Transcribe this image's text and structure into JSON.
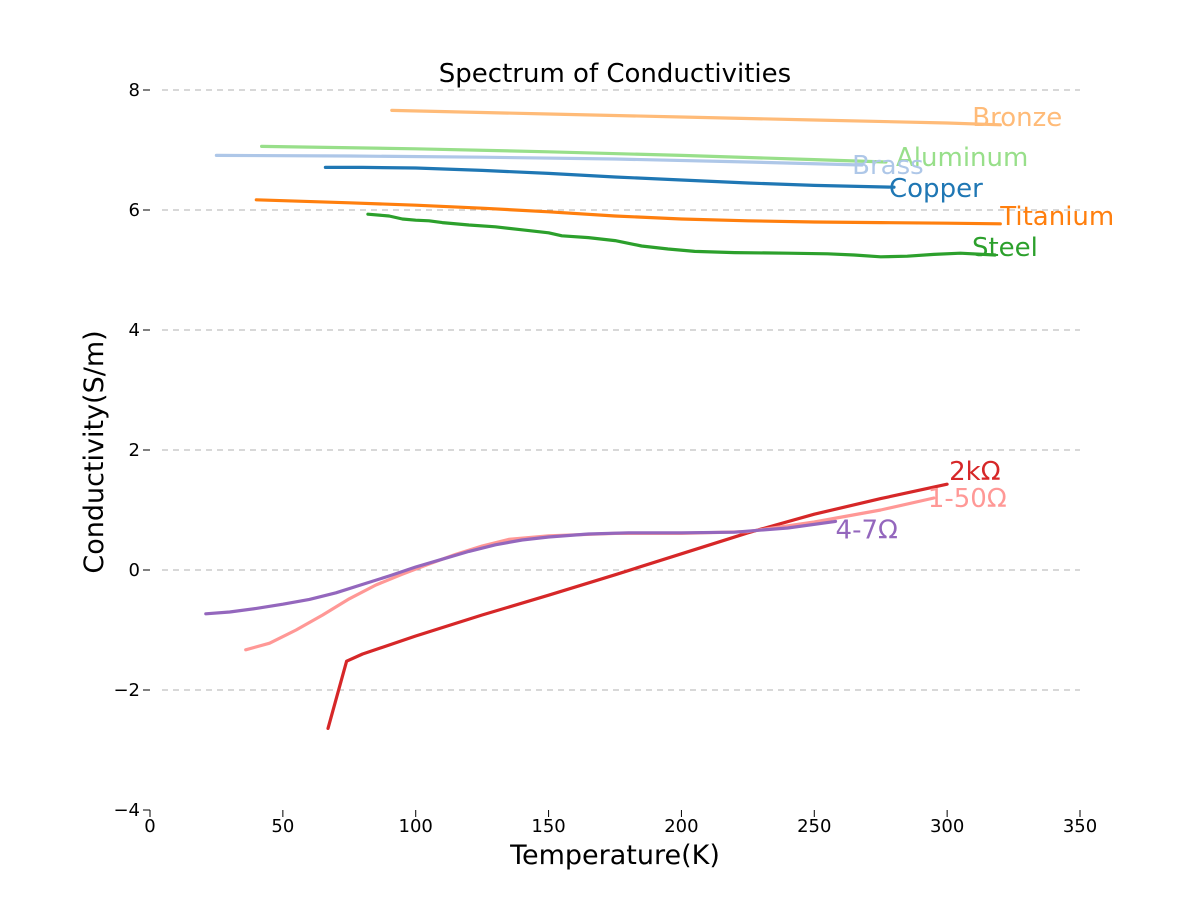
{
  "chart_data": {
    "type": "line",
    "title": "Spectrum of Conductivities",
    "xlabel": "Temperature(K)",
    "ylabel": "Conductivity(S/m)",
    "xlim": [
      0,
      350
    ],
    "ylim": [
      -4,
      8
    ],
    "xticks": [
      0,
      50,
      100,
      150,
      200,
      250,
      300,
      350
    ],
    "yticks": [
      -4,
      -2,
      0,
      2,
      4,
      6,
      8
    ],
    "xtick_labels": [
      "0",
      "50",
      "100",
      "150",
      "200",
      "250",
      "300",
      "350"
    ],
    "ytick_labels": [
      "−4",
      "−2",
      "0",
      "2",
      "4",
      "6",
      "8"
    ],
    "grid": "horizontal dashed",
    "legend": "none (labels at line ends)",
    "series": [
      {
        "name": "Bronze",
        "color": "#ffbb78",
        "x": [
          91,
          150,
          200,
          250,
          300,
          320
        ],
        "y": [
          7.66,
          7.6,
          7.55,
          7.5,
          7.45,
          7.42
        ]
      },
      {
        "name": "Aluminum",
        "color": "#98df8a",
        "x": [
          42,
          100,
          150,
          200,
          250,
          277
        ],
        "y": [
          7.06,
          7.02,
          6.97,
          6.91,
          6.84,
          6.8
        ]
      },
      {
        "name": "Brass",
        "color": "#aec7e8",
        "x": [
          25,
          75,
          125,
          175,
          225,
          268
        ],
        "y": [
          6.91,
          6.9,
          6.88,
          6.85,
          6.8,
          6.75
        ]
      },
      {
        "name": "Copper",
        "color": "#1f77b4",
        "x": [
          66,
          80,
          100,
          125,
          150,
          175,
          200,
          225,
          250,
          280
        ],
        "y": [
          6.71,
          6.71,
          6.7,
          6.66,
          6.61,
          6.55,
          6.5,
          6.45,
          6.41,
          6.38
        ]
      },
      {
        "name": "Titanium",
        "color": "#ff7f0e",
        "x": [
          40,
          75,
          100,
          125,
          150,
          175,
          200,
          225,
          250,
          275,
          300,
          320
        ],
        "y": [
          6.17,
          6.12,
          6.08,
          6.03,
          5.97,
          5.9,
          5.85,
          5.82,
          5.8,
          5.79,
          5.78,
          5.77
        ]
      },
      {
        "name": "Steel",
        "color": "#2ca02c",
        "x": [
          82,
          90,
          95,
          100,
          105,
          110,
          120,
          130,
          140,
          150,
          155,
          165,
          175,
          185,
          195,
          205,
          220,
          240,
          255,
          265,
          275,
          285,
          295,
          305,
          318
        ],
        "y": [
          5.93,
          5.9,
          5.85,
          5.83,
          5.82,
          5.79,
          5.75,
          5.72,
          5.67,
          5.62,
          5.57,
          5.54,
          5.49,
          5.4,
          5.35,
          5.31,
          5.29,
          5.28,
          5.27,
          5.25,
          5.22,
          5.23,
          5.26,
          5.28,
          5.25
        ]
      },
      {
        "name": "2kΩ",
        "color": "#d62728",
        "x": [
          67,
          74,
          80,
          100,
          125,
          150,
          175,
          200,
          225,
          250,
          275,
          300
        ],
        "y": [
          -2.64,
          -1.52,
          -1.4,
          -1.1,
          -0.75,
          -0.42,
          -0.08,
          0.27,
          0.62,
          0.93,
          1.19,
          1.43
        ]
      },
      {
        "name": "1-50Ω",
        "color": "#ff9896",
        "x": [
          36,
          45,
          55,
          65,
          75,
          85,
          95,
          105,
          115,
          125,
          135,
          150,
          175,
          200,
          225,
          250,
          275,
          295
        ],
        "y": [
          -1.33,
          -1.22,
          -1.0,
          -0.75,
          -0.48,
          -0.25,
          -0.07,
          0.1,
          0.26,
          0.4,
          0.51,
          0.57,
          0.61,
          0.61,
          0.64,
          0.8,
          1.0,
          1.2
        ]
      },
      {
        "name": "4-7Ω",
        "color": "#9467bd",
        "x": [
          21,
          30,
          40,
          50,
          60,
          70,
          80,
          90,
          100,
          110,
          120,
          130,
          140,
          150,
          165,
          180,
          200,
          220,
          240,
          258
        ],
        "y": [
          -0.73,
          -0.7,
          -0.64,
          -0.57,
          -0.49,
          -0.38,
          -0.24,
          -0.1,
          0.05,
          0.18,
          0.31,
          0.42,
          0.5,
          0.55,
          0.6,
          0.62,
          0.62,
          0.63,
          0.7,
          0.81
        ]
      }
    ],
    "label_colors": {
      "Bronze": "#ffbb78",
      "Aluminum": "#98df8a",
      "Brass": "#aec7e8",
      "Copper": "#1f77b4",
      "Titanium": "#ff7f0e",
      "Steel": "#2ca02c",
      "2kΩ": "#d62728",
      "1-50Ω": "#ff9896",
      "4-7Ω": "#9467bd"
    }
  }
}
